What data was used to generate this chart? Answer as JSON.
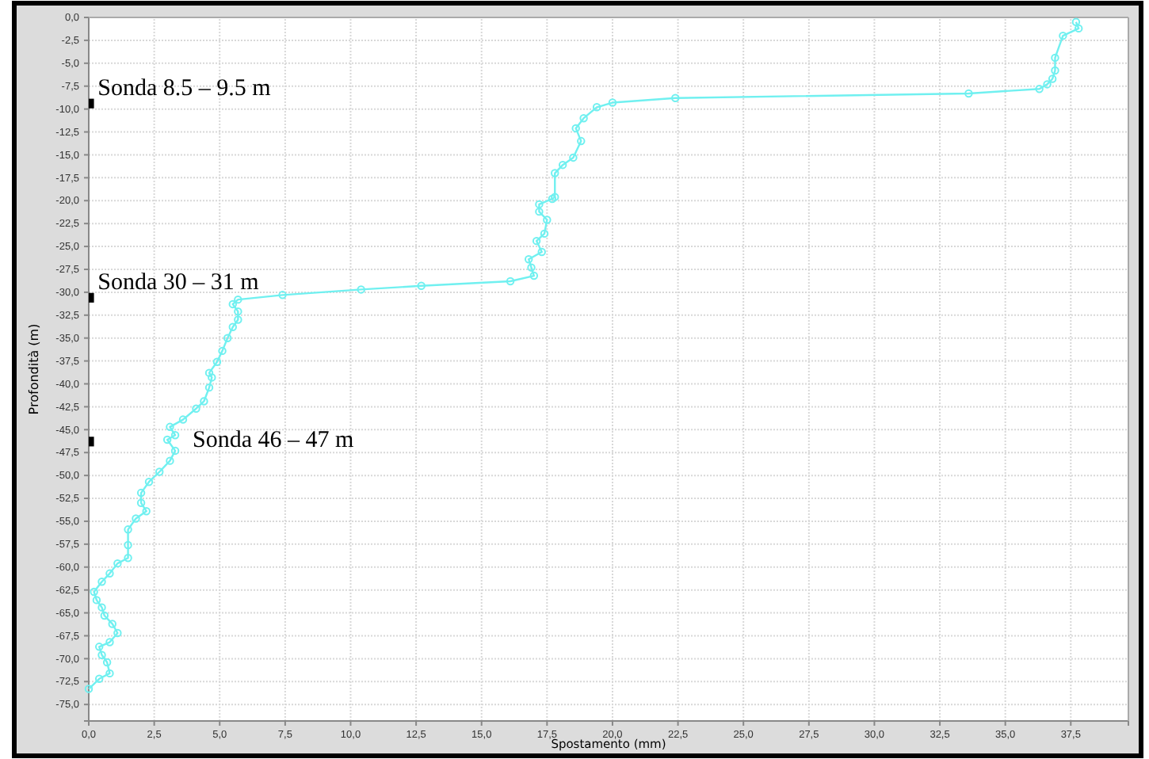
{
  "chart_data": {
    "type": "line",
    "xlabel": "Spostamento (mm)",
    "ylabel": "Profondità (m)",
    "xlim": [
      0,
      39.7
    ],
    "ylim": [
      -76.8,
      0
    ],
    "xticks": [
      {
        "value": 0,
        "label": "0,0"
      },
      {
        "value": 2.5,
        "label": "2,5"
      },
      {
        "value": 5,
        "label": "5,0"
      },
      {
        "value": 7.5,
        "label": "7,5"
      },
      {
        "value": 10,
        "label": "10,0"
      },
      {
        "value": 12.5,
        "label": "12,5"
      },
      {
        "value": 15,
        "label": "15,0"
      },
      {
        "value": 17.5,
        "label": "17,5"
      },
      {
        "value": 20,
        "label": "20,0"
      },
      {
        "value": 22.5,
        "label": "22,5"
      },
      {
        "value": 25,
        "label": "25,0"
      },
      {
        "value": 27.5,
        "label": "27,5"
      },
      {
        "value": 30,
        "label": "30,0"
      },
      {
        "value": 32.5,
        "label": "32,5"
      },
      {
        "value": 35,
        "label": "35,0"
      },
      {
        "value": 37.5,
        "label": "37,5"
      }
    ],
    "yticks": [
      {
        "value": 0,
        "label": "0,0"
      },
      {
        "value": -2.5,
        "label": "-2,5"
      },
      {
        "value": -5,
        "label": "-5,0"
      },
      {
        "value": -7.5,
        "label": "-7,5"
      },
      {
        "value": -10,
        "label": "-10,0"
      },
      {
        "value": -12.5,
        "label": "-12,5"
      },
      {
        "value": -15,
        "label": "-15,0"
      },
      {
        "value": -17.5,
        "label": "-17,5"
      },
      {
        "value": -20,
        "label": "-20,0"
      },
      {
        "value": -22.5,
        "label": "-22,5"
      },
      {
        "value": -25,
        "label": "-25,0"
      },
      {
        "value": -27.5,
        "label": "-27,5"
      },
      {
        "value": -30,
        "label": "-30,0"
      },
      {
        "value": -32.5,
        "label": "-32,5"
      },
      {
        "value": -35,
        "label": "-35,0"
      },
      {
        "value": -37.5,
        "label": "-37,5"
      },
      {
        "value": -40,
        "label": "-40,0"
      },
      {
        "value": -42.5,
        "label": "-42,5"
      },
      {
        "value": -45,
        "label": "-45,0"
      },
      {
        "value": -47.5,
        "label": "-47,5"
      },
      {
        "value": -50,
        "label": "-50,0"
      },
      {
        "value": -52.5,
        "label": "-52,5"
      },
      {
        "value": -55,
        "label": "-55,0"
      },
      {
        "value": -57.5,
        "label": "-57,5"
      },
      {
        "value": -60,
        "label": "-60,0"
      },
      {
        "value": -62.5,
        "label": "-62,5"
      },
      {
        "value": -65,
        "label": "-65,0"
      },
      {
        "value": -67.5,
        "label": "-67,5"
      },
      {
        "value": -70,
        "label": "-70,0"
      },
      {
        "value": -72.5,
        "label": "-72,5"
      },
      {
        "value": -75,
        "label": "-75,0"
      }
    ],
    "grid": true,
    "series": [
      {
        "color": "#70f0f0",
        "marker": "circle",
        "x": [
          37.7,
          37.8,
          37.2,
          36.9,
          36.9,
          36.8,
          36.6,
          36.3,
          33.6,
          22.4,
          20.0,
          19.4,
          18.9,
          18.6,
          18.8,
          18.5,
          18.1,
          17.8,
          17.8,
          17.7,
          17.2,
          17.2,
          17.5,
          17.4,
          17.1,
          17.3,
          16.8,
          16.9,
          17.0,
          16.1,
          12.7,
          10.4,
          7.4,
          5.7,
          5.5,
          5.7,
          5.7,
          5.5,
          5.3,
          5.1,
          4.9,
          4.6,
          4.7,
          4.6,
          4.4,
          4.1,
          3.6,
          3.1,
          3.3,
          3.0,
          3.3,
          3.1,
          2.7,
          2.3,
          2.0,
          2.0,
          2.2,
          1.8,
          1.5,
          1.5,
          1.5,
          1.1,
          0.8,
          0.5,
          0.2,
          0.3,
          0.5,
          0.6,
          0.9,
          1.1,
          0.8,
          0.4,
          0.5,
          0.7,
          0.8,
          0.4,
          0.0
        ],
        "values": [
          -0.5,
          -1.2,
          -2.0,
          -4.4,
          -5.8,
          -6.7,
          -7.3,
          -7.8,
          -8.3,
          -8.8,
          -9.3,
          -9.8,
          -11.0,
          -12.1,
          -13.5,
          -15.3,
          -16.1,
          -17.0,
          -19.6,
          -19.8,
          -20.4,
          -21.2,
          -22.1,
          -23.6,
          -24.4,
          -25.6,
          -26.4,
          -27.3,
          -28.2,
          -28.8,
          -29.3,
          -29.7,
          -30.3,
          -30.8,
          -31.3,
          -32.1,
          -33.0,
          -33.8,
          -35.0,
          -36.4,
          -37.6,
          -38.8,
          -39.3,
          -40.4,
          -41.9,
          -42.7,
          -43.9,
          -44.7,
          -45.6,
          -46.1,
          -47.3,
          -48.4,
          -49.6,
          -50.7,
          -51.9,
          -53.0,
          -53.9,
          -54.7,
          -55.9,
          -57.6,
          -59.0,
          -59.6,
          -60.7,
          -61.6,
          -62.7,
          -63.6,
          -64.4,
          -65.3,
          -66.2,
          -67.2,
          -68.2,
          -68.7,
          -69.6,
          -70.4,
          -71.6,
          -72.2,
          -73.3
        ]
      },
      {
        "type": "scatter",
        "color": "#000000",
        "marker": "square",
        "x": [
          0.1,
          0.1,
          0.1
        ],
        "values": [
          -9.4,
          -30.6,
          -46.3
        ]
      }
    ],
    "annotations": [
      "Sonda 8.5 – 9.5 m",
      "Sonda 30 – 31 m",
      "Sonda 46 – 47 m"
    ]
  }
}
